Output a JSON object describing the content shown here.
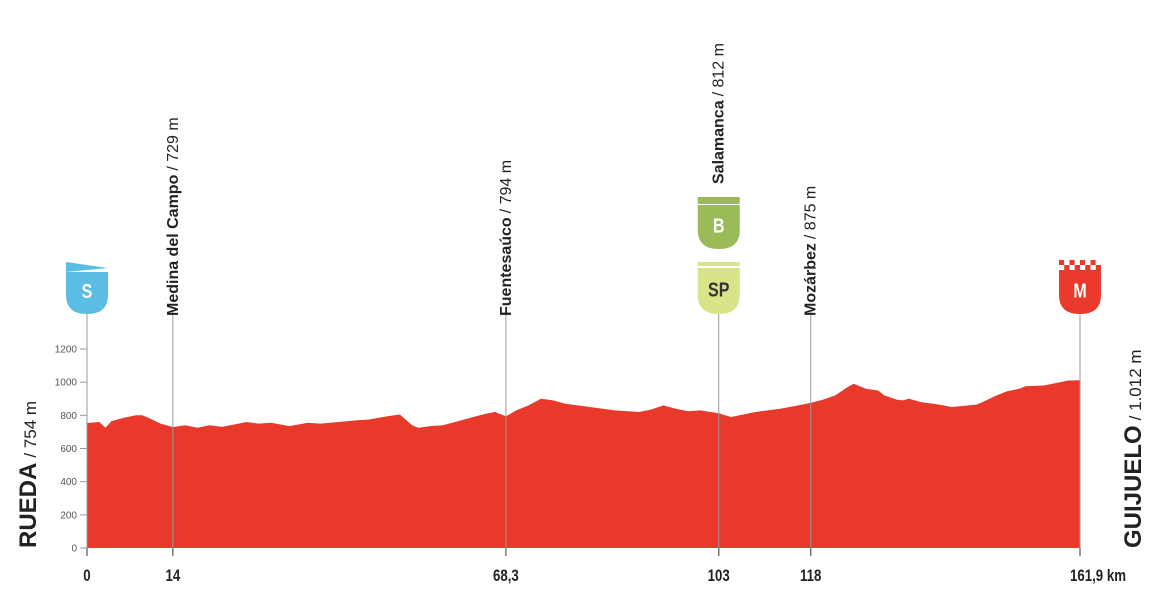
{
  "colors": {
    "profile_fill": "#e8392a",
    "start_badge": "#5bbde4",
    "bonus_badge": "#9bbb59",
    "sprint_badge": "#d9e38a",
    "finish_badge": "#e8392a",
    "axis": "#999999",
    "text": "#222222"
  },
  "chart_data": {
    "type": "area",
    "ylim": [
      0,
      1200
    ],
    "xlim": [
      0,
      161.9
    ],
    "y_ticks": [
      {
        "value": 0,
        "label": "0"
      },
      {
        "value": 200,
        "label": "200"
      },
      {
        "value": 400,
        "label": "400"
      },
      {
        "value": 600,
        "label": "600"
      },
      {
        "value": 800,
        "label": "800"
      },
      {
        "value": 1000,
        "label": "1000"
      },
      {
        "value": 1200,
        "label": "1200"
      }
    ],
    "x_ticks": [
      {
        "value": 0,
        "label": "0"
      },
      {
        "value": 14,
        "label": "14"
      },
      {
        "value": 68.3,
        "label": "68,3"
      },
      {
        "value": 103,
        "label": "103"
      },
      {
        "value": 118,
        "label": "118"
      },
      {
        "value": 161.9,
        "label": "161,9 km"
      }
    ],
    "start": {
      "name": "RUEDA",
      "altitude": "/ 754 m",
      "badge": "S",
      "km": 0
    },
    "finish": {
      "name": "GUIJUELO",
      "altitude": "/ 1.012 m",
      "badge": "M",
      "km": 161.9
    },
    "waypoints": [
      {
        "name": "Medina del Campo",
        "altitude": "/ 729 m",
        "km": 14
      },
      {
        "name": "Fuentesaúco",
        "altitude": "/ 794 m",
        "km": 68.3
      },
      {
        "name": "Salamanca",
        "altitude": "/ 812 m",
        "km": 103
      },
      {
        "name": "Mozárbez",
        "altitude": "/ 875 m",
        "km": 118
      }
    ],
    "badges": [
      {
        "label": "B",
        "km": 103,
        "kind": "bonus"
      },
      {
        "label": "SP",
        "km": 103,
        "kind": "sprint"
      }
    ],
    "profile": {
      "x": [
        0,
        2,
        3,
        4,
        6,
        8,
        9,
        10,
        12,
        14,
        16,
        18,
        20,
        22,
        24,
        26,
        28,
        30,
        33,
        36,
        38,
        41,
        44,
        46,
        49,
        51,
        53,
        54,
        56,
        58,
        60,
        62,
        65,
        66.5,
        68.3,
        70,
        72,
        74,
        76,
        78,
        82,
        86,
        90,
        92,
        94,
        96,
        98,
        100,
        103,
        105,
        107,
        109,
        113,
        116,
        118,
        120,
        122,
        124,
        125,
        127,
        129,
        130,
        132,
        133,
        134,
        136,
        139,
        141,
        145,
        146,
        148,
        150,
        152,
        153,
        156,
        158,
        160,
        161.9
      ],
      "y": [
        754,
        760,
        725,
        765,
        785,
        800,
        800,
        785,
        750,
        729,
        740,
        725,
        740,
        730,
        745,
        760,
        750,
        755,
        735,
        755,
        750,
        760,
        770,
        775,
        795,
        805,
        740,
        725,
        735,
        740,
        760,
        780,
        810,
        820,
        794,
        830,
        860,
        900,
        890,
        870,
        850,
        830,
        820,
        835,
        860,
        840,
        825,
        830,
        812,
        790,
        805,
        820,
        840,
        860,
        875,
        895,
        920,
        970,
        990,
        960,
        950,
        920,
        895,
        890,
        900,
        880,
        865,
        850,
        865,
        880,
        915,
        945,
        960,
        975,
        980,
        995,
        1010,
        1012
      ]
    }
  }
}
